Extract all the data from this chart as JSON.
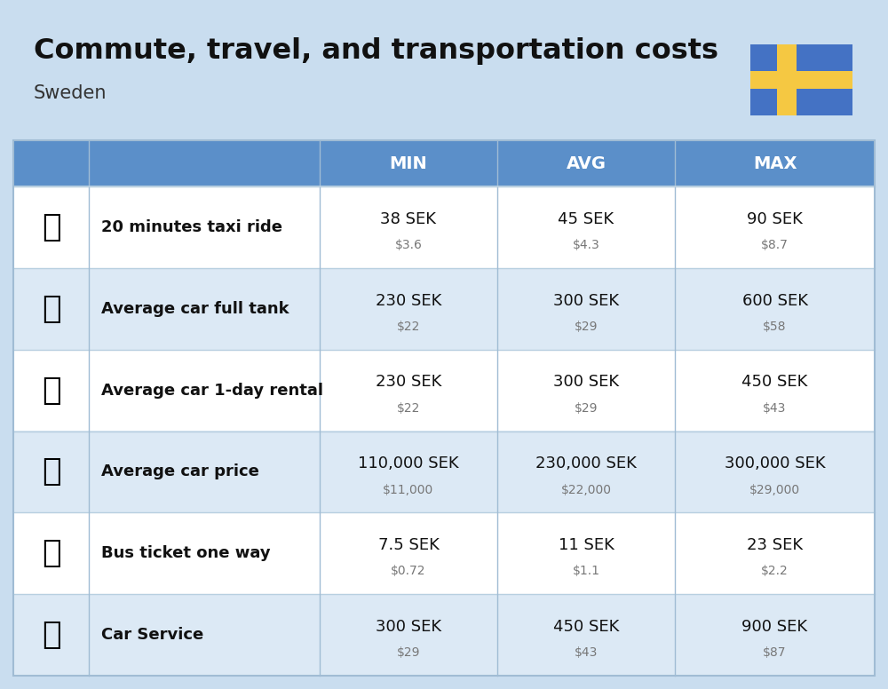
{
  "title": "Commute, travel, and transportation costs",
  "subtitle": "Sweden",
  "background_color": "#c9ddef",
  "header_bg_color": "#5b8fc9",
  "header_text_color": "#ffffff",
  "row_bg_color_1": "#ffffff",
  "row_bg_color_2": "#dce9f5",
  "separator_color": "#b8cfe0",
  "table_border_color": "#a0bcd4",
  "col_headers": [
    "MIN",
    "AVG",
    "MAX"
  ],
  "rows": [
    {
      "label": "20 minutes taxi ride",
      "min_sek": "38 SEK",
      "min_usd": "$3.6",
      "avg_sek": "45 SEK",
      "avg_usd": "$4.3",
      "max_sek": "90 SEK",
      "max_usd": "$8.7"
    },
    {
      "label": "Average car full tank",
      "min_sek": "230 SEK",
      "min_usd": "$22",
      "avg_sek": "300 SEK",
      "avg_usd": "$29",
      "max_sek": "600 SEK",
      "max_usd": "$58"
    },
    {
      "label": "Average car 1-day rental",
      "min_sek": "230 SEK",
      "min_usd": "$22",
      "avg_sek": "300 SEK",
      "avg_usd": "$29",
      "max_sek": "450 SEK",
      "max_usd": "$43"
    },
    {
      "label": "Average car price",
      "min_sek": "110,000 SEK",
      "min_usd": "$11,000",
      "avg_sek": "230,000 SEK",
      "avg_usd": "$22,000",
      "max_sek": "300,000 SEK",
      "max_usd": "$29,000"
    },
    {
      "label": "Bus ticket one way",
      "min_sek": "7.5 SEK",
      "min_usd": "$0.72",
      "avg_sek": "11 SEK",
      "avg_usd": "$1.1",
      "max_sek": "23 SEK",
      "max_usd": "$2.2"
    },
    {
      "label": "Car Service",
      "min_sek": "300 SEK",
      "min_usd": "$29",
      "avg_sek": "450 SEK",
      "avg_usd": "$43",
      "max_sek": "900 SEK",
      "max_usd": "$87"
    }
  ],
  "flag_blue": "#4472c4",
  "flag_yellow": "#f5c842",
  "title_fontsize": 23,
  "subtitle_fontsize": 15,
  "header_fontsize": 14,
  "label_fontsize": 13,
  "value_fontsize": 13,
  "subvalue_fontsize": 10,
  "icon_fontsize": 26
}
